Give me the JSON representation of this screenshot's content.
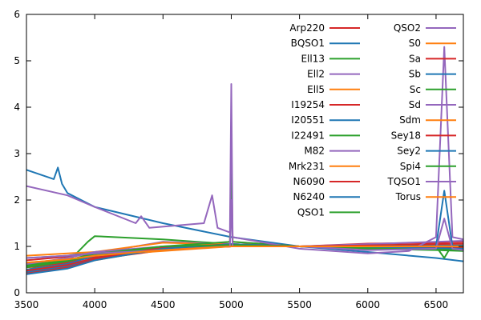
{
  "chart_data": {
    "type": "line",
    "title": "",
    "xlabel": "",
    "ylabel": "",
    "xlim": [
      3500,
      6700
    ],
    "ylim": [
      0,
      6
    ],
    "xticks": [
      3500,
      4000,
      4500,
      5000,
      5500,
      6000,
      6500
    ],
    "yticks": [
      0,
      1,
      2,
      3,
      4,
      5,
      6
    ],
    "grid": false,
    "legend_position": "top-right",
    "legend_columns": 2,
    "series": [
      {
        "name": "Arp220",
        "color": "#d62728",
        "x": [
          3500,
          3800,
          4000,
          4500,
          4800,
          5000,
          5500,
          6000,
          6500,
          6700
        ],
        "y": [
          0.55,
          0.6,
          0.72,
          0.92,
          0.98,
          1.0,
          1.0,
          1.06,
          1.08,
          1.1
        ]
      },
      {
        "name": "BQSO1",
        "color": "#1f77b4",
        "x": [
          3500,
          3700,
          3730,
          3760,
          3800,
          4000,
          4500,
          5000,
          5500,
          6000,
          6500,
          6700
        ],
        "y": [
          2.65,
          2.45,
          2.7,
          2.35,
          2.15,
          1.85,
          1.5,
          1.2,
          1.0,
          0.88,
          0.75,
          0.68
        ]
      },
      {
        "name": "Ell13",
        "color": "#2ca02c",
        "x": [
          3500,
          3800,
          3950,
          4000,
          4500,
          5000,
          5500,
          6000,
          6500,
          6700
        ],
        "y": [
          0.5,
          0.65,
          1.1,
          1.22,
          1.15,
          1.05,
          1.0,
          0.95,
          0.92,
          0.9
        ]
      },
      {
        "name": "Ell2",
        "color": "#9467bd",
        "x": [
          3500,
          3800,
          4000,
          4500,
          5000,
          5500,
          6000,
          6500,
          6700
        ],
        "y": [
          0.45,
          0.6,
          0.85,
          1.1,
          1.05,
          1.0,
          0.96,
          0.94,
          0.93
        ]
      },
      {
        "name": "Ell5",
        "color": "#ff7f0e",
        "x": [
          3500,
          3800,
          4000,
          4500,
          5000,
          5500,
          6000,
          6500,
          6700
        ],
        "y": [
          0.5,
          0.62,
          0.88,
          1.08,
          1.04,
          1.0,
          0.97,
          0.95,
          0.94
        ]
      },
      {
        "name": "I19254",
        "color": "#d62728",
        "x": [
          3500,
          3800,
          4000,
          4500,
          5000,
          5500,
          6000,
          6500,
          6700
        ],
        "y": [
          0.7,
          0.78,
          0.85,
          0.95,
          1.0,
          1.0,
          1.02,
          1.03,
          1.04
        ]
      },
      {
        "name": "I20551",
        "color": "#1f77b4",
        "x": [
          3500,
          3800,
          4000,
          4500,
          5000,
          5500,
          6000,
          6500,
          6700
        ],
        "y": [
          0.75,
          0.8,
          0.88,
          0.95,
          1.0,
          1.0,
          1.0,
          1.0,
          1.0
        ]
      },
      {
        "name": "I22491",
        "color": "#2ca02c",
        "x": [
          3500,
          3800,
          4000,
          4500,
          5000,
          5500,
          6000,
          6500,
          6700
        ],
        "y": [
          0.6,
          0.7,
          0.82,
          0.95,
          1.0,
          1.0,
          1.02,
          1.04,
          1.05
        ]
      },
      {
        "name": "M82",
        "color": "#9467bd",
        "x": [
          3500,
          3800,
          4000,
          4500,
          5000,
          5500,
          6000,
          6500,
          6700
        ],
        "y": [
          0.4,
          0.55,
          0.75,
          0.98,
          1.02,
          1.0,
          1.05,
          1.1,
          1.12
        ]
      },
      {
        "name": "Mrk231",
        "color": "#ff7f0e",
        "x": [
          3500,
          3800,
          4000,
          4500,
          4990,
          5000,
          5010,
          5500,
          6000,
          6500,
          6700
        ],
        "y": [
          0.8,
          0.85,
          0.88,
          0.95,
          1.1,
          3.2,
          1.1,
          1.0,
          1.0,
          1.02,
          1.03
        ]
      },
      {
        "name": "N6090",
        "color": "#d62728",
        "x": [
          3500,
          3800,
          4000,
          4500,
          5000,
          5500,
          6000,
          6500,
          6700
        ],
        "y": [
          0.55,
          0.65,
          0.78,
          0.95,
          1.0,
          1.0,
          1.02,
          1.05,
          1.06
        ]
      },
      {
        "name": "N6240",
        "color": "#1f77b4",
        "x": [
          3500,
          3800,
          4000,
          4500,
          5000,
          5500,
          6000,
          6500,
          6700
        ],
        "y": [
          0.5,
          0.62,
          0.8,
          0.98,
          1.02,
          1.0,
          1.0,
          1.01,
          1.02
        ]
      },
      {
        "name": "QSO1",
        "color": "#2ca02c",
        "x": [
          3500,
          3800,
          4000,
          4500,
          4990,
          5000,
          5010,
          5500,
          6000,
          6500,
          6560,
          6600,
          6700
        ],
        "y": [
          0.6,
          0.7,
          0.85,
          1.0,
          1.1,
          2.6,
          1.1,
          1.0,
          0.95,
          1.0,
          0.75,
          0.95,
          0.92
        ]
      },
      {
        "name": "QSO2",
        "color": "#9467bd",
        "x": [
          3500,
          3800,
          4000,
          4300,
          4340,
          4400,
          4800,
          4860,
          4900,
          4990,
          5000,
          5010,
          5500,
          6000,
          6300,
          6500,
          6560,
          6620,
          6700
        ],
        "y": [
          2.3,
          2.1,
          1.85,
          1.5,
          1.65,
          1.4,
          1.5,
          2.1,
          1.4,
          1.3,
          4.5,
          1.2,
          0.95,
          0.85,
          0.9,
          1.2,
          5.3,
          1.2,
          1.15
        ]
      },
      {
        "name": "S0",
        "color": "#ff7f0e",
        "x": [
          3500,
          3800,
          4000,
          4500,
          5000,
          5500,
          6000,
          6500,
          6700
        ],
        "y": [
          0.45,
          0.55,
          0.7,
          0.95,
          1.05,
          1.0,
          0.97,
          0.95,
          0.94
        ]
      },
      {
        "name": "Sa",
        "color": "#d62728",
        "x": [
          3500,
          3800,
          4000,
          4500,
          5000,
          5500,
          6000,
          6500,
          6700
        ],
        "y": [
          0.42,
          0.55,
          0.72,
          0.96,
          1.04,
          1.0,
          0.97,
          0.96,
          0.95
        ]
      },
      {
        "name": "Sb",
        "color": "#1f77b4",
        "x": [
          3500,
          3800,
          4000,
          4500,
          5000,
          5500,
          6000,
          6500,
          6560,
          6620,
          6700
        ],
        "y": [
          0.45,
          0.58,
          0.75,
          0.97,
          1.03,
          1.0,
          0.98,
          1.0,
          2.2,
          1.0,
          0.98
        ]
      },
      {
        "name": "Sc",
        "color": "#2ca02c",
        "x": [
          3500,
          3800,
          4000,
          4500,
          5000,
          5500,
          6000,
          6500,
          6700
        ],
        "y": [
          0.55,
          0.68,
          0.82,
          0.98,
          1.02,
          1.0,
          0.98,
          0.97,
          0.96
        ]
      },
      {
        "name": "Sd",
        "color": "#9467bd",
        "x": [
          3500,
          3800,
          4000,
          4500,
          5000,
          5500,
          6000,
          6500,
          6700
        ],
        "y": [
          0.62,
          0.75,
          0.88,
          1.0,
          1.02,
          1.0,
          0.99,
          0.98,
          0.98
        ]
      },
      {
        "name": "Sdm",
        "color": "#ff7f0e",
        "x": [
          3500,
          3800,
          4000,
          4500,
          5000,
          5500,
          6000,
          6500,
          6700
        ],
        "y": [
          0.65,
          0.72,
          0.8,
          0.9,
          1.0,
          1.0,
          1.0,
          1.0,
          1.0
        ]
      },
      {
        "name": "Sey18",
        "color": "#d62728",
        "x": [
          3500,
          3800,
          4000,
          4500,
          5000,
          5500,
          6000,
          6500,
          6700
        ],
        "y": [
          0.48,
          0.6,
          0.75,
          0.97,
          1.05,
          1.0,
          0.98,
          0.98,
          0.97
        ]
      },
      {
        "name": "Sey2",
        "color": "#1f77b4",
        "x": [
          3500,
          3800,
          4000,
          4500,
          5000,
          5500,
          6000,
          6500,
          6700
        ],
        "y": [
          0.4,
          0.52,
          0.7,
          0.95,
          1.05,
          1.0,
          0.97,
          0.96,
          0.95
        ]
      },
      {
        "name": "Spi4",
        "color": "#2ca02c",
        "x": [
          3500,
          3800,
          4000,
          4500,
          5000,
          5500,
          6000,
          6500,
          6700
        ],
        "y": [
          0.58,
          0.7,
          0.84,
          1.0,
          1.03,
          1.0,
          0.96,
          0.93,
          0.92
        ]
      },
      {
        "name": "TQSO1",
        "color": "#9467bd",
        "x": [
          3500,
          3800,
          4000,
          4500,
          4990,
          5000,
          5010,
          5500,
          6000,
          6500,
          6560,
          6620,
          6700
        ],
        "y": [
          0.75,
          0.8,
          0.85,
          0.92,
          1.0,
          2.0,
          1.0,
          1.0,
          0.92,
          0.95,
          1.6,
          0.95,
          0.92
        ]
      },
      {
        "name": "Torus",
        "color": "#ff7f0e",
        "x": [
          3500,
          3800,
          4000,
          4500,
          5000,
          5500,
          6000,
          6500,
          6700
        ],
        "y": [
          0.65,
          0.72,
          0.8,
          0.92,
          1.0,
          1.0,
          1.0,
          1.0,
          1.0
        ]
      }
    ]
  }
}
